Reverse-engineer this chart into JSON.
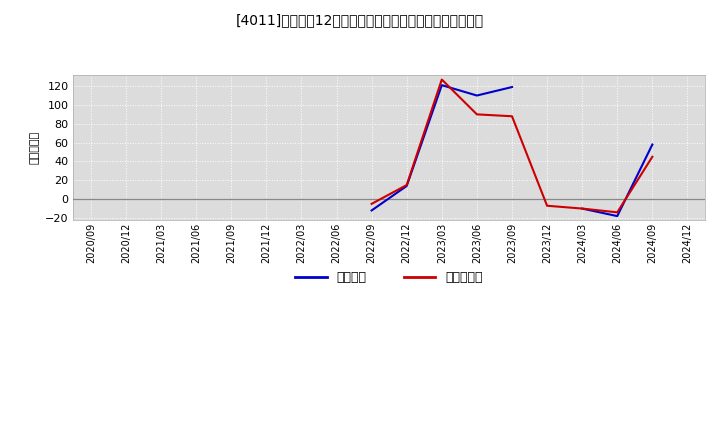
{
  "title": "[4011]　利益の12か月移動合計の対前年同期増減額の推移",
  "ylabel": "（百万円）",
  "background_color": "#ffffff",
  "plot_bg_color": "#dcdcdc",
  "grid_color": "#ffffff",
  "ylim": [
    -22,
    132
  ],
  "yticks": [
    -20,
    0,
    20,
    40,
    60,
    80,
    100,
    120
  ],
  "legend_labels": [
    "経常利益",
    "当期純利益"
  ],
  "line_colors": [
    "#0000cc",
    "#cc0000"
  ],
  "x_labels": [
    "2020/09",
    "2020/12",
    "2021/03",
    "2021/06",
    "2021/09",
    "2021/12",
    "2022/03",
    "2022/06",
    "2022/09",
    "2022/12",
    "2023/03",
    "2023/06",
    "2023/09",
    "2023/12",
    "2024/03",
    "2024/06",
    "2024/09",
    "2024/12"
  ],
  "keijo_y": [
    null,
    null,
    null,
    null,
    null,
    null,
    null,
    null,
    -12,
    14,
    121,
    110,
    119,
    null,
    -10,
    -18,
    58,
    null
  ],
  "junri_y": [
    null,
    null,
    null,
    null,
    null,
    null,
    null,
    null,
    -5,
    15,
    127,
    90,
    88,
    -7,
    -10,
    -14,
    45,
    null
  ]
}
